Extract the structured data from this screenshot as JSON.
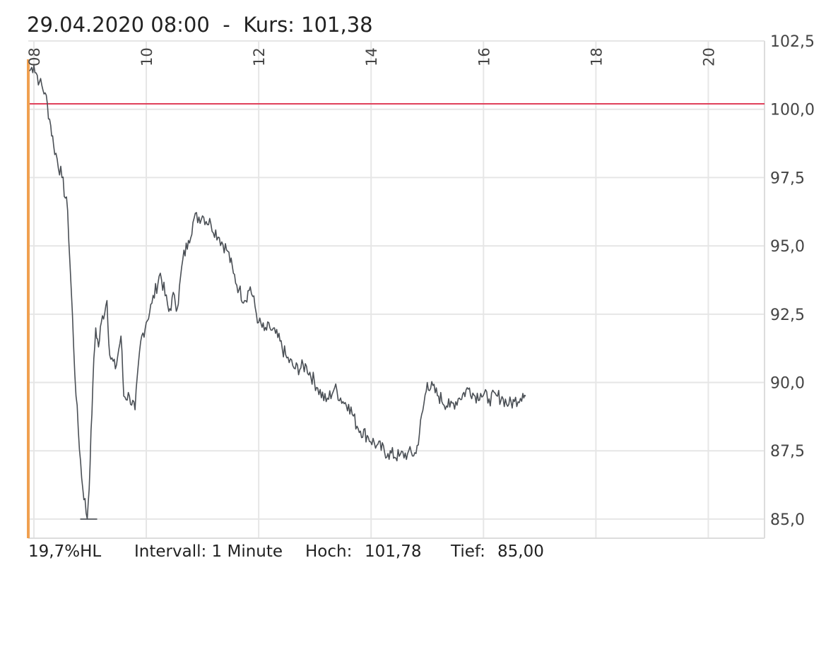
{
  "header": {
    "date": "29.04.2020 08:00",
    "separator": "  -  ",
    "price_label": "Kurs: 101,38"
  },
  "footer": {
    "range_pct": "19,7%HL",
    "interval": "Intervall: 1 Minute",
    "high_label": "Hoch:",
    "high_value": "101,78",
    "low_label": "Tief:",
    "low_value": "85,00"
  },
  "colors": {
    "line": "#4a4f55",
    "reference_line": "#e0405a",
    "start_marker": "#f0a050",
    "grid": "#e6e6e6"
  },
  "chart_data": {
    "type": "line",
    "title": "",
    "xlabel": "",
    "ylabel": "",
    "x_unit": "hour",
    "xlim": [
      7.9,
      21.0
    ],
    "ylim": [
      84.3,
      102.5
    ],
    "x_ticks": [
      {
        "value": 8,
        "label": "08"
      },
      {
        "value": 10,
        "label": "10"
      },
      {
        "value": 12,
        "label": "12"
      },
      {
        "value": 14,
        "label": "14"
      },
      {
        "value": 16,
        "label": "16"
      },
      {
        "value": 18,
        "label": "18"
      },
      {
        "value": 20,
        "label": "20"
      }
    ],
    "y_ticks": [
      {
        "value": 85.0,
        "label": "85,0"
      },
      {
        "value": 87.5,
        "label": "87,5"
      },
      {
        "value": 90.0,
        "label": "90,0"
      },
      {
        "value": 92.5,
        "label": "92,5"
      },
      {
        "value": 95.0,
        "label": "95,0"
      },
      {
        "value": 97.5,
        "label": "97,5"
      },
      {
        "value": 100.0,
        "label": "100,0"
      },
      {
        "value": 102.5,
        "label": "102,5"
      }
    ],
    "grid": true,
    "reference_line": 100.2,
    "series": [
      {
        "x": [
          7.92,
          8.0,
          8.1,
          8.2,
          8.3,
          8.35,
          8.5,
          8.6,
          8.75,
          8.85,
          8.95,
          9.0,
          9.05,
          9.1,
          9.15,
          9.2,
          9.3,
          9.35,
          9.45,
          9.55,
          9.6,
          9.7,
          9.8,
          9.9,
          10.0,
          10.1,
          10.25,
          10.4,
          10.5,
          10.55,
          10.65,
          10.75,
          10.85,
          11.0,
          11.15,
          11.3,
          11.45,
          11.55,
          11.65,
          11.75,
          11.85,
          12.0,
          12.1,
          12.2,
          12.3,
          12.5,
          12.65,
          12.85,
          13.05,
          13.2,
          13.35,
          13.5,
          13.6,
          13.75,
          13.95,
          14.1,
          14.3,
          14.5,
          14.65,
          14.8,
          15.0,
          15.2,
          15.4,
          15.55,
          15.75,
          15.85,
          15.95,
          16.1,
          16.25,
          16.35,
          16.45,
          16.55,
          16.7,
          16.75
        ],
        "y": [
          101.4,
          101.6,
          101.0,
          100.6,
          99.4,
          98.7,
          97.5,
          96.3,
          89.5,
          86.5,
          85.0,
          87.0,
          90.0,
          92.0,
          91.3,
          92.2,
          93.0,
          91.0,
          90.5,
          91.7,
          89.5,
          89.5,
          89.0,
          91.5,
          92.2,
          92.9,
          94.0,
          92.6,
          93.2,
          92.7,
          94.5,
          95.2,
          96.0,
          96.1,
          95.8,
          95.3,
          94.8,
          94.0,
          93.4,
          93.0,
          93.5,
          92.2,
          91.9,
          92.0,
          91.8,
          90.9,
          90.5,
          90.6,
          89.8,
          89.3,
          89.8,
          89.3,
          89.2,
          88.4,
          88.0,
          87.7,
          87.4,
          87.3,
          87.4,
          87.4,
          90.0,
          89.5,
          89.1,
          89.4,
          89.8,
          89.5,
          89.6,
          89.4,
          89.5,
          89.4,
          89.2,
          89.3,
          89.6,
          89.5
        ]
      }
    ]
  }
}
